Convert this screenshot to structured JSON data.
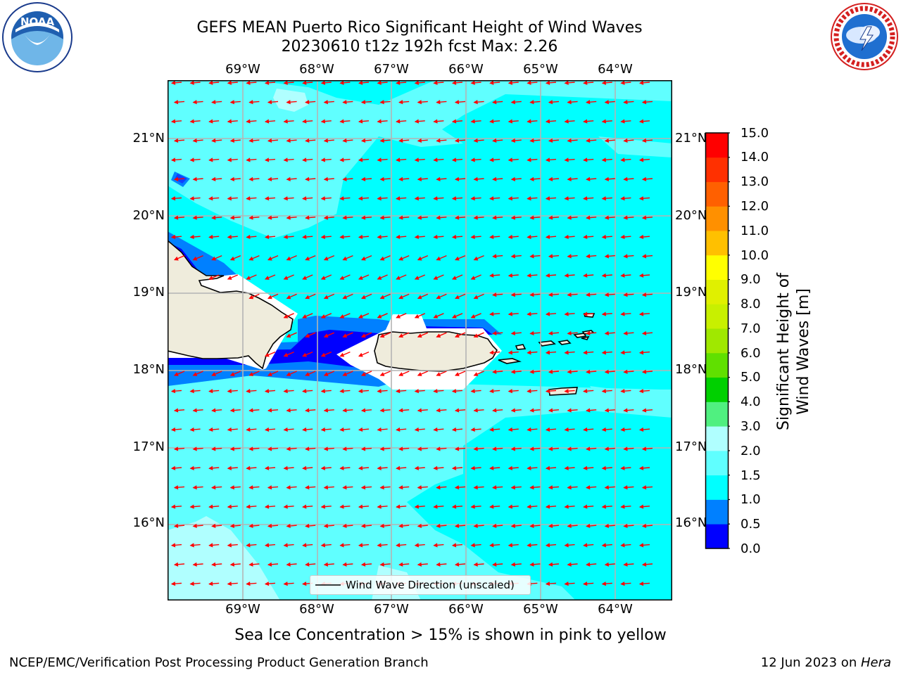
{
  "title": {
    "line1": "GEFS MEAN Puerto Rico Significant Height of Wind Waves",
    "line2": "20230610 t12z 192h fcst   Max: 2.26"
  },
  "logos": {
    "left": {
      "name": "noaa-logo",
      "text": "NOAA",
      "ring_text": "NATIONAL OCEANIC AND ATMOSPHERIC ADMINISTRATION · U.S. DEPARTMENT OF COMMERCE"
    },
    "right": {
      "name": "nws-logo",
      "ring_text": "NATIONAL WEATHER SERVICE"
    }
  },
  "map": {
    "lon_labels": [
      "69°W",
      "68°W",
      "67°W",
      "66°W",
      "65°W",
      "64°W"
    ],
    "lat_labels": [
      "21°N",
      "20°N",
      "19°N",
      "18°N",
      "17°N",
      "16°N"
    ],
    "legend_label": "Wind Wave Direction (unscaled)",
    "wave_direction": "toward west",
    "colors": {
      "ocean_1_0_to_1_5": "#00ffff",
      "land": "#efecdc",
      "coast": "#000000",
      "arrow": "#ff0000",
      "grid": "#b4b4b4"
    }
  },
  "colorbar": {
    "label": "Significant Height of Wind Waves [m]",
    "ticks": [
      "15.0",
      "14.0",
      "13.0",
      "12.0",
      "11.0",
      "10.0",
      "9.0",
      "8.0",
      "7.0",
      "6.0",
      "5.0",
      "4.0",
      "3.0",
      "2.0",
      "1.5",
      "1.0",
      "0.5",
      "0.0"
    ],
    "colors": [
      "#0000ff",
      "#0080ff",
      "#00ffff",
      "#60ffff",
      "#b0ffff",
      "#50f080",
      "#00d000",
      "#60e000",
      "#a0e800",
      "#c8f000",
      "#e0f000",
      "#ffff00",
      "#ffc000",
      "#ff9000",
      "#ff6000",
      "#ff3000",
      "#ff0000"
    ]
  },
  "notes": {
    "sea_ice": "Sea Ice Concentration > 15% is shown in pink to yellow"
  },
  "footer": {
    "left": "NCEP/EMC/Verification Post Processing Product Generation Branch",
    "date": "12 Jun 2023 on ",
    "host": "Hera"
  }
}
